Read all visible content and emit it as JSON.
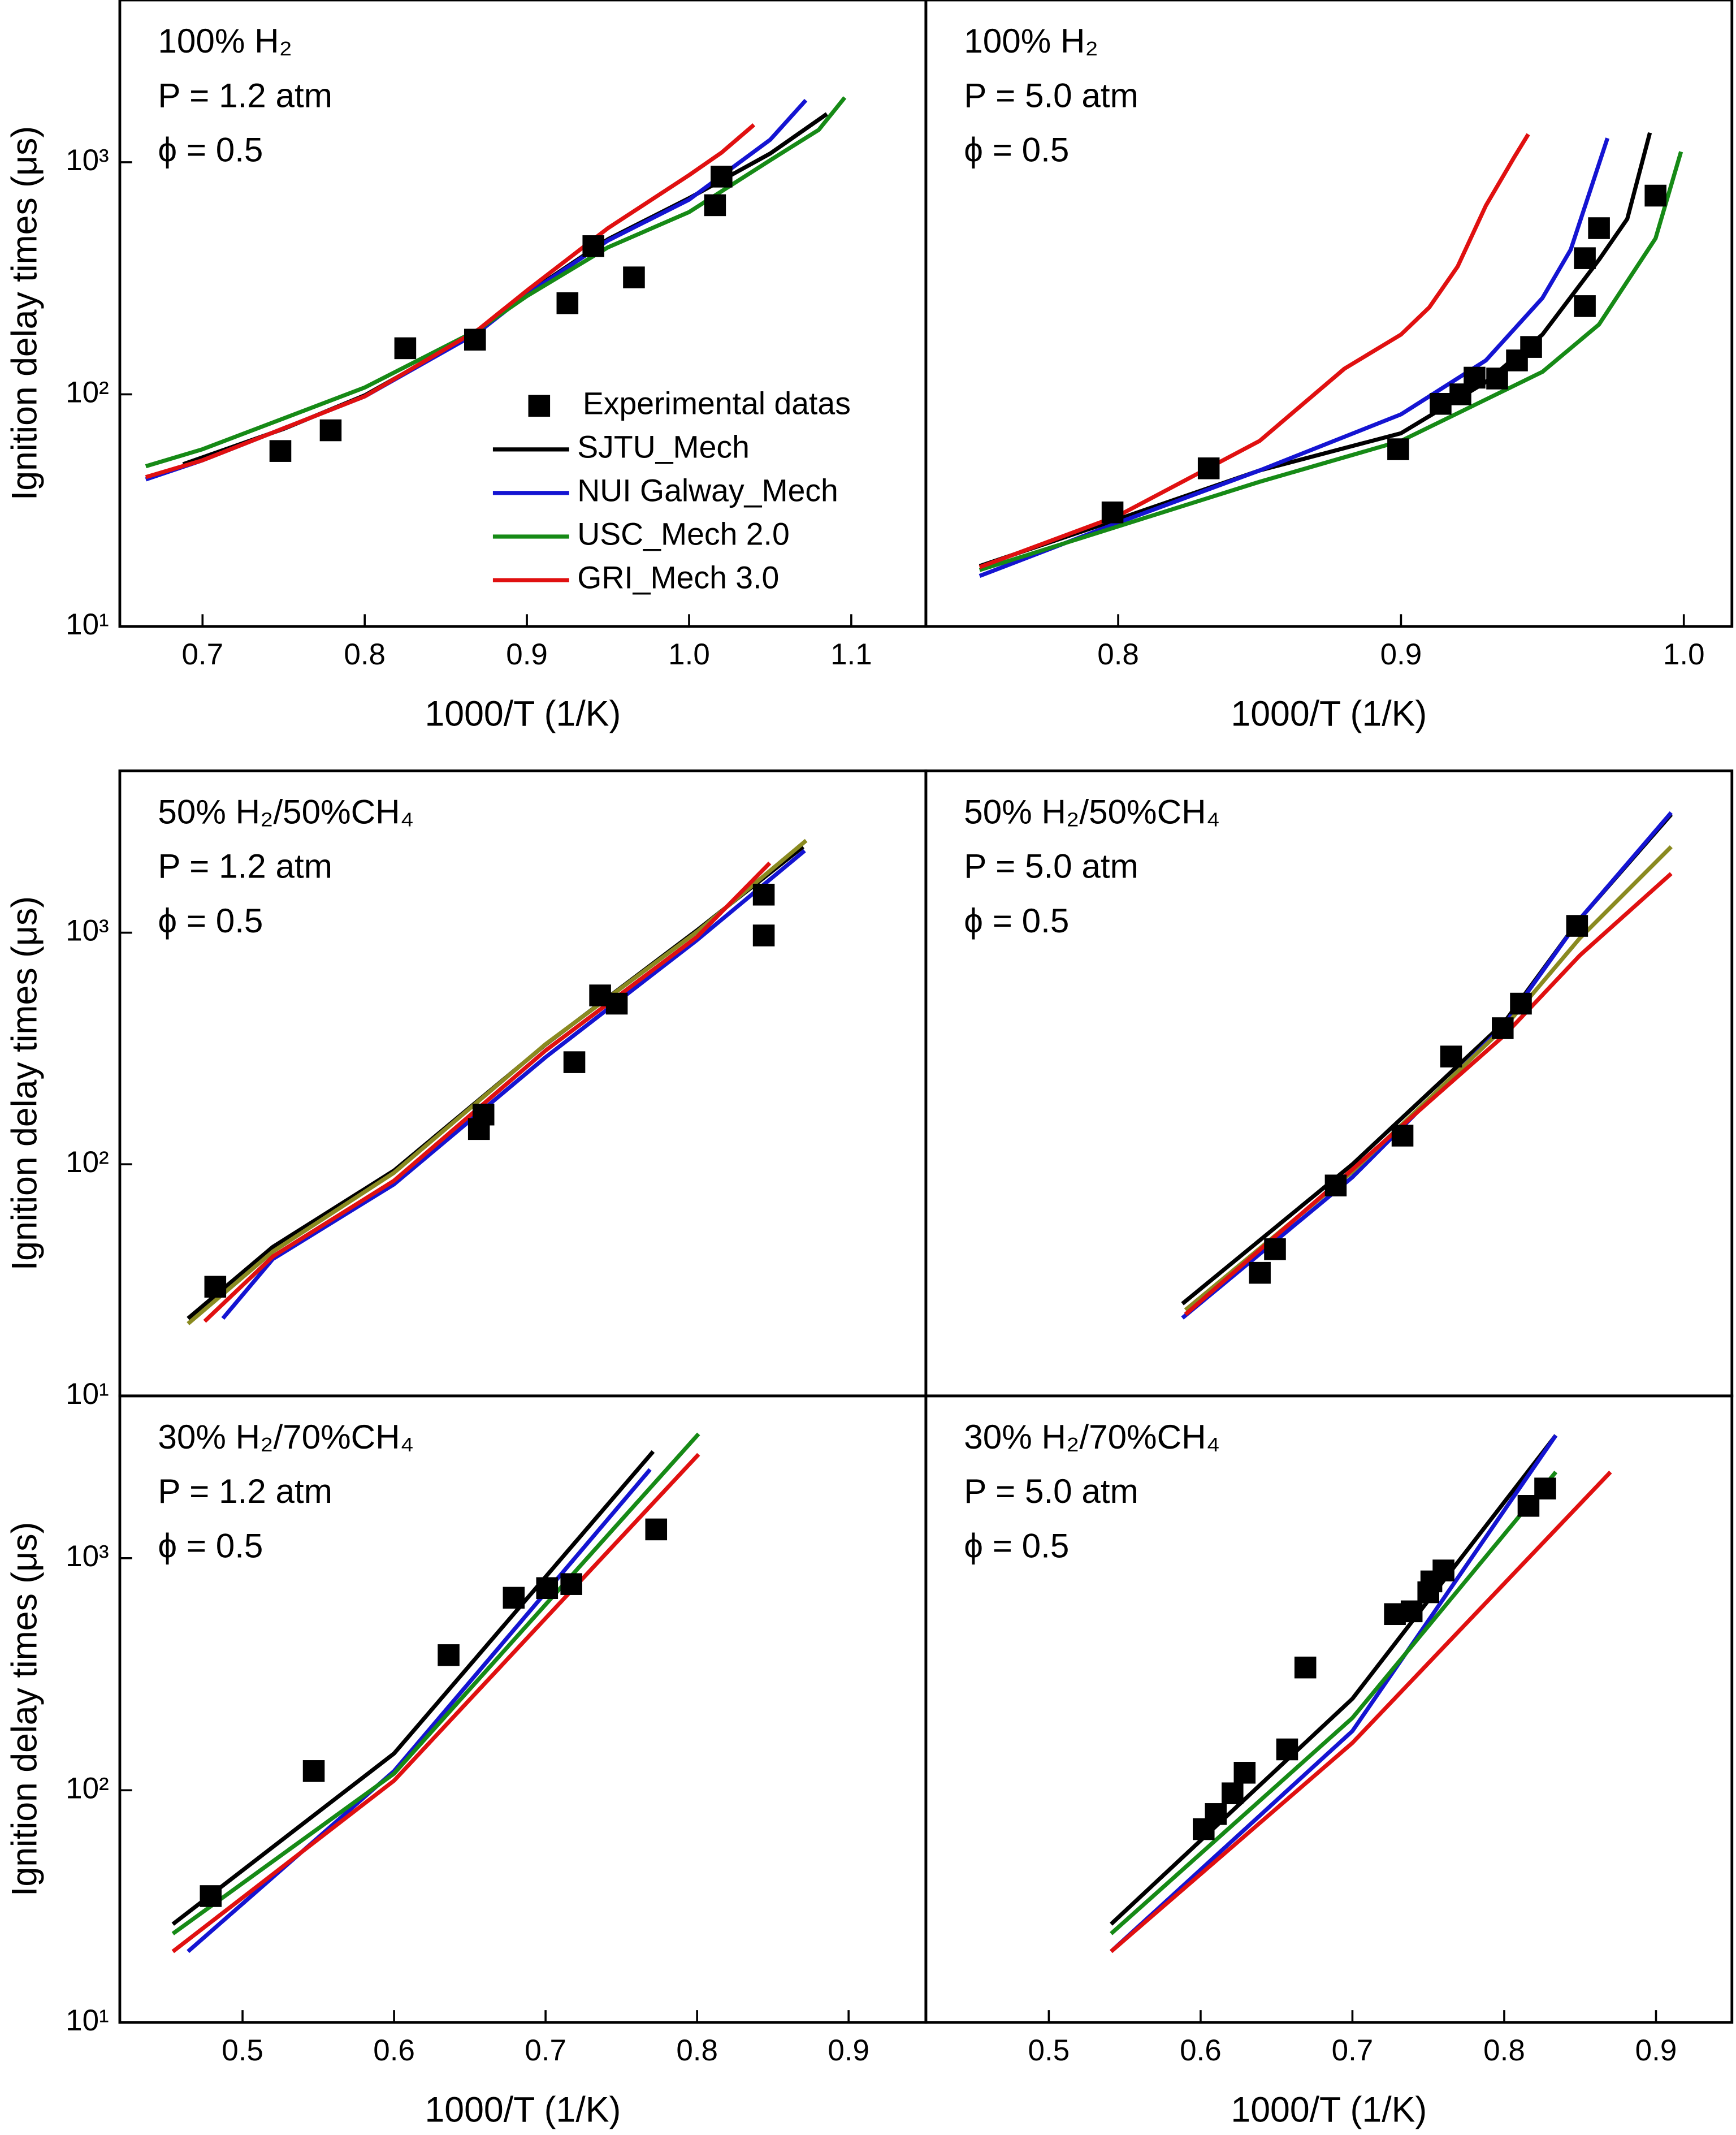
{
  "chart_data": [
    {
      "type": "line",
      "annotations": [
        "100% H₂",
        "P = 1.2 atm",
        "ϕ = 0.5"
      ],
      "ylabel": "Ignition delay times (μs)",
      "xlabel": "1000/T (1/K)",
      "xlim": [
        0.649,
        1.146
      ],
      "xticks": [
        0.7,
        0.8,
        0.9,
        {
          "value": 1.0,
          "label": "1.0"
        },
        1.1
      ],
      "ylim": [
        10,
        5000
      ],
      "yticks": [
        {
          "value": 10,
          "label": "10¹"
        },
        {
          "value": 100,
          "label": "10²"
        },
        {
          "value": 1000,
          "label": "10³"
        }
      ],
      "log_y": true,
      "legend": "lower right",
      "scatter": {
        "name": "Experimental datas",
        "color": "#000000",
        "x": [
          0.748,
          0.779,
          0.825,
          0.868,
          0.925,
          0.941,
          0.966,
          1.016,
          1.02
        ],
        "values": [
          57,
          70,
          158,
          172,
          247,
          435,
          319,
          653,
          867
        ]
      },
      "series": [
        {
          "name": "SJTU_Mech",
          "color": "#000000",
          "x": [
            0.688,
            0.75,
            0.8,
            0.87,
            0.9,
            0.95,
            1.0,
            1.05,
            1.085
          ],
          "values": [
            50,
            71,
            99,
            186,
            272,
            466,
            700,
            1090,
            1615
          ]
        },
        {
          "name": "NUI Galway_Mech",
          "color": "#1414d2",
          "x": [
            0.665,
            0.7,
            0.8,
            0.87,
            0.9,
            0.95,
            1.0,
            1.05,
            1.072
          ],
          "values": [
            43,
            52,
            98,
            185,
            270,
            460,
            690,
            1250,
            1850
          ]
        },
        {
          "name": "USC_Mech 2.0",
          "color": "#168a16",
          "x": [
            0.665,
            0.7,
            0.8,
            0.87,
            0.9,
            0.95,
            1.0,
            1.05,
            1.08,
            1.096
          ],
          "values": [
            49,
            58,
            107,
            190,
            265,
            430,
            610,
            1020,
            1380,
            1900
          ]
        },
        {
          "name": "GRI_Mech 3.0",
          "color": "#e01010",
          "x": [
            0.665,
            0.7,
            0.8,
            0.87,
            0.9,
            0.95,
            1.0,
            1.02,
            1.04
          ],
          "values": [
            44,
            52,
            98,
            190,
            280,
            520,
            880,
            1100,
            1450
          ]
        }
      ]
    },
    {
      "type": "line",
      "annotations": [
        "100% H₂",
        "P = 5.0 atm",
        "ϕ = 0.5"
      ],
      "xlabel": "1000/T (1/K)",
      "xlim": [
        0.732,
        1.017
      ],
      "xticks": [
        0.8,
        0.9,
        {
          "value": 1.0,
          "label": "1.0"
        }
      ],
      "ylim": [
        10,
        5000
      ],
      "log_y": true,
      "scatter": {
        "color": "#000000",
        "x": [
          0.798,
          0.832,
          0.899,
          0.914,
          0.921,
          0.926,
          0.934,
          0.941,
          0.946,
          0.965,
          0.965,
          0.97,
          0.99
        ],
        "values": [
          31,
          48,
          58,
          91,
          100,
          118,
          117,
          140,
          160,
          240,
          386,
          520,
          718
        ]
      },
      "series": [
        {
          "color": "#000000",
          "x": [
            0.751,
            0.8,
            0.85,
            0.9,
            0.93,
            0.95,
            0.97,
            0.98,
            0.988
          ],
          "values": [
            18.2,
            29,
            47,
            68,
            113,
            181,
            380,
            570,
            1340
          ]
        },
        {
          "color": "#1414d2",
          "x": [
            0.751,
            0.8,
            0.85,
            0.9,
            0.93,
            0.95,
            0.96,
            0.973
          ],
          "values": [
            16.5,
            28,
            47,
            82,
            140,
            260,
            420,
            1270
          ]
        },
        {
          "color": "#168a16",
          "x": [
            0.751,
            0.8,
            0.85,
            0.9,
            0.95,
            0.97,
            0.99,
            0.999
          ],
          "values": [
            17.5,
            27,
            42,
            63,
            125,
            200,
            470,
            1110
          ]
        },
        {
          "color": "#e01010",
          "x": [
            0.751,
            0.8,
            0.85,
            0.88,
            0.9,
            0.91,
            0.92,
            0.93,
            0.94,
            0.945
          ],
          "values": [
            18,
            30,
            63,
            129,
            181,
            237,
            355,
            650,
            1050,
            1320
          ]
        }
      ]
    },
    {
      "type": "line",
      "annotations": [
        "50% H₂/50%CH₄",
        "P = 1.2 atm",
        "ϕ = 0.5"
      ],
      "ylabel": "Ignition delay times (μs)",
      "xlim": [
        0.419,
        0.951
      ],
      "ylim": [
        10,
        5000
      ],
      "yticks": [
        {
          "value": 10,
          "label": "10¹"
        },
        {
          "value": 100,
          "label": "10²"
        },
        {
          "value": 1000,
          "label": "10³"
        }
      ],
      "log_y": true,
      "scatter": {
        "color": "#000000",
        "x": [
          0.482,
          0.656,
          0.659,
          0.719,
          0.736,
          0.747,
          0.844,
          0.844
        ],
        "values": [
          29.6,
          142,
          164,
          276,
          536,
          494,
          973,
          1460
        ]
      },
      "series": [
        {
          "color": "#000000",
          "x": [
            0.464,
            0.52,
            0.6,
            0.7,
            0.8,
            0.87
          ],
          "values": [
            21.6,
            44,
            94,
            329,
            1025,
            2350
          ]
        },
        {
          "color": "#1414d2",
          "x": [
            0.487,
            0.52,
            0.6,
            0.7,
            0.8,
            0.871
          ],
          "values": [
            21.6,
            39,
            82,
            290,
            930,
            2260
          ]
        },
        {
          "color": "#8a8a20",
          "x": [
            0.464,
            0.52,
            0.6,
            0.7,
            0.8,
            0.872
          ],
          "values": [
            20.5,
            42,
            92,
            330,
            1010,
            2500
          ]
        },
        {
          "color": "#e01010",
          "x": [
            0.475,
            0.52,
            0.6,
            0.7,
            0.8,
            0.848
          ],
          "values": [
            21,
            40,
            85,
            310,
            960,
            2000
          ]
        }
      ]
    },
    {
      "type": "line",
      "annotations": [
        "50% H₂/50%CH₄",
        "P = 5.0 atm",
        "ϕ = 0.5"
      ],
      "xlim": [
        0.419,
        0.95
      ],
      "ylim": [
        10,
        5000
      ],
      "log_y": true,
      "scatter": {
        "color": "#000000",
        "x": [
          0.639,
          0.649,
          0.689,
          0.733,
          0.765,
          0.799,
          0.811,
          0.848
        ],
        "values": [
          34,
          43,
          81,
          133,
          292,
          387,
          494,
          1070
        ]
      },
      "series": [
        {
          "color": "#000000",
          "x": [
            0.588,
            0.7,
            0.8,
            0.85,
            0.91
          ],
          "values": [
            25,
            100,
            410,
            1150,
            3240
          ]
        },
        {
          "color": "#1414d2",
          "x": [
            0.588,
            0.7,
            0.8,
            0.85,
            0.91
          ],
          "values": [
            21.7,
            88,
            400,
            1150,
            3300
          ]
        },
        {
          "color": "#8a8a20",
          "x": [
            0.59,
            0.7,
            0.8,
            0.85,
            0.91
          ],
          "values": [
            23.5,
            93,
            390,
            950,
            2350
          ]
        },
        {
          "color": "#e01010",
          "x": [
            0.59,
            0.7,
            0.8,
            0.85,
            0.91
          ],
          "values": [
            22.5,
            95,
            360,
            800,
            1800
          ]
        }
      ]
    },
    {
      "type": "line",
      "annotations": [
        "30% H₂/70%CH₄",
        "P = 1.2 atm",
        "ϕ = 0.5"
      ],
      "ylabel": "Ignition delay times (μs)",
      "xlabel": "1000/T (1/K)",
      "xlim": [
        0.419,
        0.951
      ],
      "xticks": [
        0.5,
        0.6,
        0.7,
        0.8,
        0.9
      ],
      "ylim": [
        10,
        5000
      ],
      "yticks": [
        {
          "value": 10,
          "label": "10¹"
        },
        {
          "value": 100,
          "label": "10²"
        },
        {
          "value": 1000,
          "label": "10³"
        }
      ],
      "log_y": true,
      "scatter": {
        "color": "#000000",
        "x": [
          0.479,
          0.547,
          0.636,
          0.679,
          0.701,
          0.717,
          0.773
        ],
        "values": [
          35,
          121,
          382,
          675,
          743,
          773,
          1330
        ]
      },
      "series": [
        {
          "color": "#000000",
          "x": [
            0.454,
            0.6,
            0.771
          ],
          "values": [
            26.5,
            144,
            2880
          ]
        },
        {
          "color": "#1414d2",
          "x": [
            0.464,
            0.6,
            0.769
          ],
          "values": [
            20.2,
            121,
            2410
          ]
        },
        {
          "color": "#168a16",
          "x": [
            0.454,
            0.6,
            0.801
          ],
          "values": [
            24.1,
            118,
            3430
          ]
        },
        {
          "color": "#e01010",
          "x": [
            0.454,
            0.6,
            0.801
          ],
          "values": [
            20.2,
            110,
            2800
          ]
        }
      ]
    },
    {
      "type": "line",
      "annotations": [
        "30% H₂/70%CH₄",
        "P = 5.0 atm",
        "ϕ = 0.5"
      ],
      "xlabel": "1000/T (1/K)",
      "xlim": [
        0.419,
        0.95
      ],
      "xticks": [
        0.5,
        0.6,
        0.7,
        0.8,
        0.9
      ],
      "ylim": [
        10,
        5000
      ],
      "log_y": true,
      "scatter": {
        "color": "#000000",
        "x": [
          0.602,
          0.61,
          0.621,
          0.629,
          0.657,
          0.669,
          0.728,
          0.739,
          0.75,
          0.752,
          0.76,
          0.816,
          0.827
        ],
        "values": [
          68,
          79,
          97,
          119,
          150,
          338,
          574,
          590,
          713,
          794,
          885,
          1680,
          1995
        ]
      },
      "series": [
        {
          "color": "#000000",
          "x": [
            0.541,
            0.7,
            0.834
          ],
          "values": [
            26.5,
            248,
            3380
          ]
        },
        {
          "color": "#1414d2",
          "x": [
            0.541,
            0.7,
            0.834
          ],
          "values": [
            20.2,
            180,
            3380
          ]
        },
        {
          "color": "#168a16",
          "x": [
            0.541,
            0.7,
            0.834
          ],
          "values": [
            24.1,
            205,
            2350
          ]
        },
        {
          "color": "#e01010",
          "x": [
            0.541,
            0.7,
            0.87
          ],
          "values": [
            20.2,
            160,
            2350
          ]
        }
      ]
    }
  ]
}
